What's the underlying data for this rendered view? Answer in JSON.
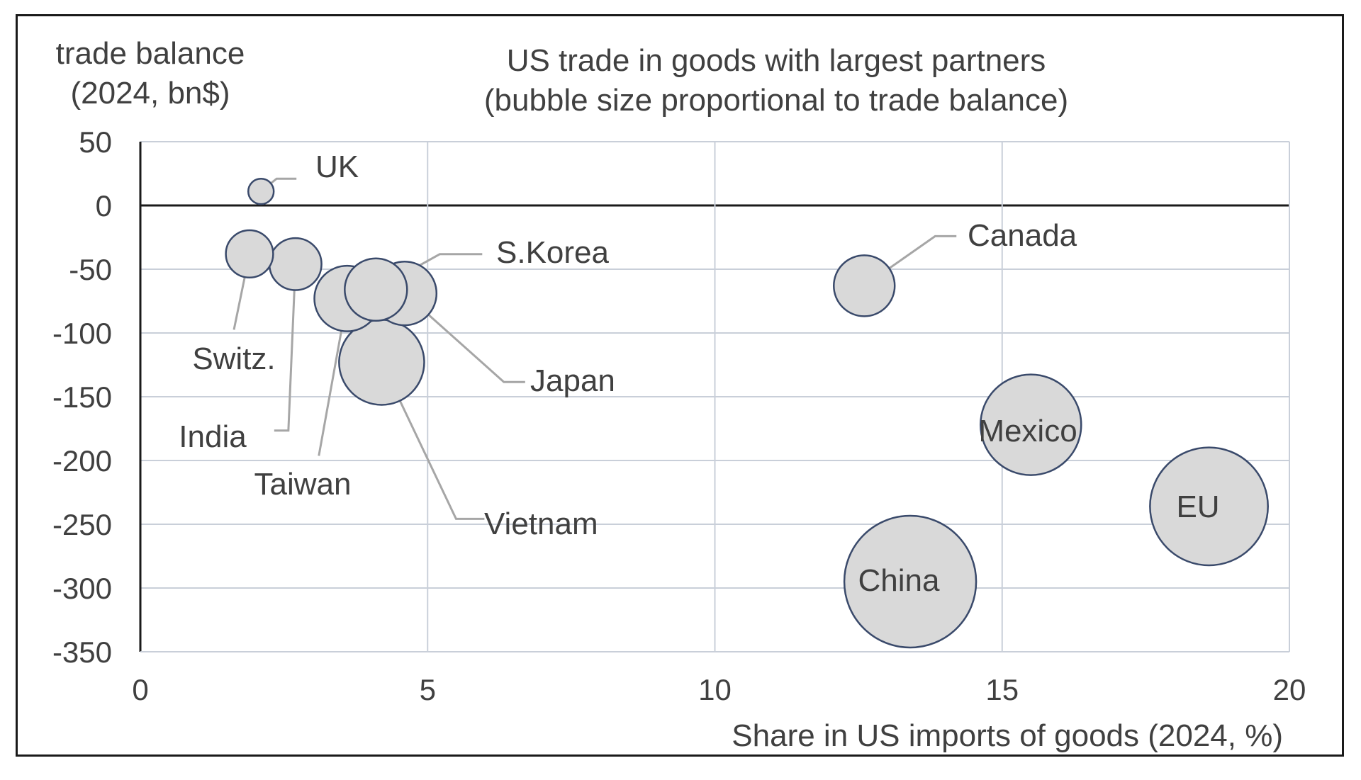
{
  "chart_data": {
    "type": "scatter",
    "subtype": "bubble",
    "title": "US trade in goods with largest partners",
    "subtitle": "(bubble size proportional to trade balance)",
    "ylabel_line1": "trade balance",
    "ylabel_line2": "(2024, bn$)",
    "xlabel": "Share in US imports of goods (2024, %)",
    "xlim": [
      0,
      20
    ],
    "ylim": [
      -350,
      50
    ],
    "xticks": [
      "0",
      "5",
      "10",
      "15",
      "20"
    ],
    "yticks": [
      "50",
      "0",
      "-50",
      "-100",
      "-150",
      "-200",
      "-250",
      "-300",
      "-350"
    ],
    "grid": true,
    "colors": {
      "bubble_fill": "#d9d9d9",
      "bubble_stroke": "#3a4a6b",
      "grid": "#c9cfd9",
      "text": "#404040"
    },
    "points": [
      {
        "name": "UK",
        "x": 2.1,
        "y": 11
      },
      {
        "name": "Switz.",
        "x": 1.9,
        "y": -38
      },
      {
        "name": "India",
        "x": 2.7,
        "y": -46
      },
      {
        "name": "Taiwan",
        "x": 3.6,
        "y": -73
      },
      {
        "name": "Japan",
        "x": 4.6,
        "y": -69
      },
      {
        "name": "S.Korea",
        "x": 4.1,
        "y": -66
      },
      {
        "name": "Vietnam",
        "x": 4.2,
        "y": -123
      },
      {
        "name": "Canada",
        "x": 12.6,
        "y": -63
      },
      {
        "name": "Mexico",
        "x": 15.5,
        "y": -172
      },
      {
        "name": "EU",
        "x": 18.6,
        "y": -236
      },
      {
        "name": "China",
        "x": 13.4,
        "y": -295
      }
    ]
  }
}
